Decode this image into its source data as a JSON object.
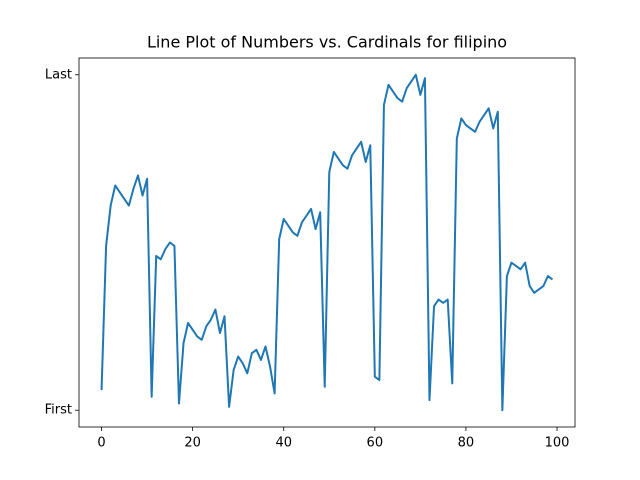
{
  "chart_data": {
    "type": "line",
    "title": "Line Plot of Numbers vs. Cardinals for filipino",
    "x": [
      0,
      1,
      2,
      3,
      4,
      5,
      6,
      7,
      8,
      9,
      10,
      11,
      12,
      13,
      14,
      15,
      16,
      17,
      18,
      19,
      20,
      21,
      22,
      23,
      24,
      25,
      26,
      27,
      28,
      29,
      30,
      31,
      32,
      33,
      34,
      35,
      36,
      37,
      38,
      39,
      40,
      41,
      42,
      43,
      44,
      45,
      46,
      47,
      48,
      49,
      50,
      51,
      52,
      53,
      54,
      55,
      56,
      57,
      58,
      59,
      60,
      61,
      62,
      63,
      64,
      65,
      66,
      67,
      68,
      69,
      70,
      71,
      72,
      73,
      74,
      75,
      76,
      77,
      78,
      79,
      80,
      81,
      82,
      83,
      84,
      85,
      86,
      87,
      88,
      89,
      90,
      91,
      92,
      93,
      94,
      95,
      96,
      97,
      98,
      99
    ],
    "values": [
      6,
      49,
      61,
      67,
      65,
      63,
      61,
      66,
      70,
      64,
      69,
      4,
      46,
      45,
      48,
      50,
      49,
      2,
      20,
      26,
      24,
      22,
      21,
      25,
      27,
      30,
      23,
      28,
      1,
      12,
      16,
      14,
      11,
      17,
      18,
      15,
      19,
      13,
      5,
      51,
      57,
      55,
      53,
      52,
      56,
      58,
      60,
      54,
      59,
      7,
      71,
      77,
      75,
      73,
      72,
      76,
      78,
      80,
      74,
      79,
      10,
      9,
      91,
      97,
      95,
      93,
      92,
      96,
      98,
      100,
      94,
      99,
      3,
      31,
      33,
      32,
      33,
      8,
      81,
      87,
      85,
      84,
      83,
      86,
      88,
      90,
      84,
      89,
      0,
      40,
      44,
      43,
      42,
      44,
      37,
      35,
      36,
      37,
      40,
      39
    ],
    "color": "#1f77b4",
    "xlim": [
      -4.95,
      103.95
    ],
    "xticks": [
      0,
      20,
      40,
      60,
      80,
      100
    ],
    "ylim": [
      -5,
      105
    ],
    "yticks": [
      {
        "value": 0,
        "label": "First"
      },
      {
        "value": 100,
        "label": "Last"
      }
    ]
  }
}
